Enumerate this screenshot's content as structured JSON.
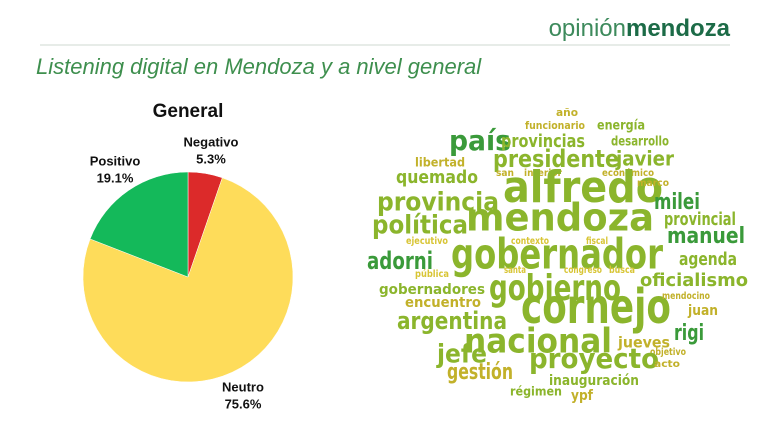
{
  "header": {
    "brand_light": "opinión",
    "brand_bold": "mendoza",
    "title": "Listening digital en Mendoza y a nivel general"
  },
  "chart_data": {
    "type": "pie",
    "title": "General",
    "categories": [
      "Negativo",
      "Neutro",
      "Positivo"
    ],
    "values": [
      5.3,
      75.6,
      19.1
    ],
    "value_labels": [
      "5.3%",
      "75.6%",
      "19.1%"
    ],
    "colors": [
      "#dc2a2a",
      "#fedc5a",
      "#14b95a"
    ]
  },
  "word_cloud": {
    "words": [
      "año",
      "funcionario",
      "energía",
      "país",
      "provincias",
      "desarrollo",
      "presidente",
      "javier",
      "libertad",
      "san",
      "interior",
      "económico",
      "quemado",
      "alfredo",
      "marco",
      "provincia",
      "milei",
      "mendoza",
      "provincial",
      "política",
      "manuel",
      "ejecutivo",
      "contexto",
      "fiscal",
      "gobernador",
      "adorni",
      "agenda",
      "santa",
      "congreso",
      "busca",
      "pública",
      "gobierno",
      "oficialismo",
      "gobernadores",
      "juan",
      "encuentro",
      "cornejo",
      "mendocino",
      "argentina",
      "rigi",
      "nacional",
      "jueves",
      "jefe",
      "objetivo",
      "proyecto",
      "acto",
      "gestión",
      "inauguración",
      "régimen",
      "ypf"
    ]
  }
}
